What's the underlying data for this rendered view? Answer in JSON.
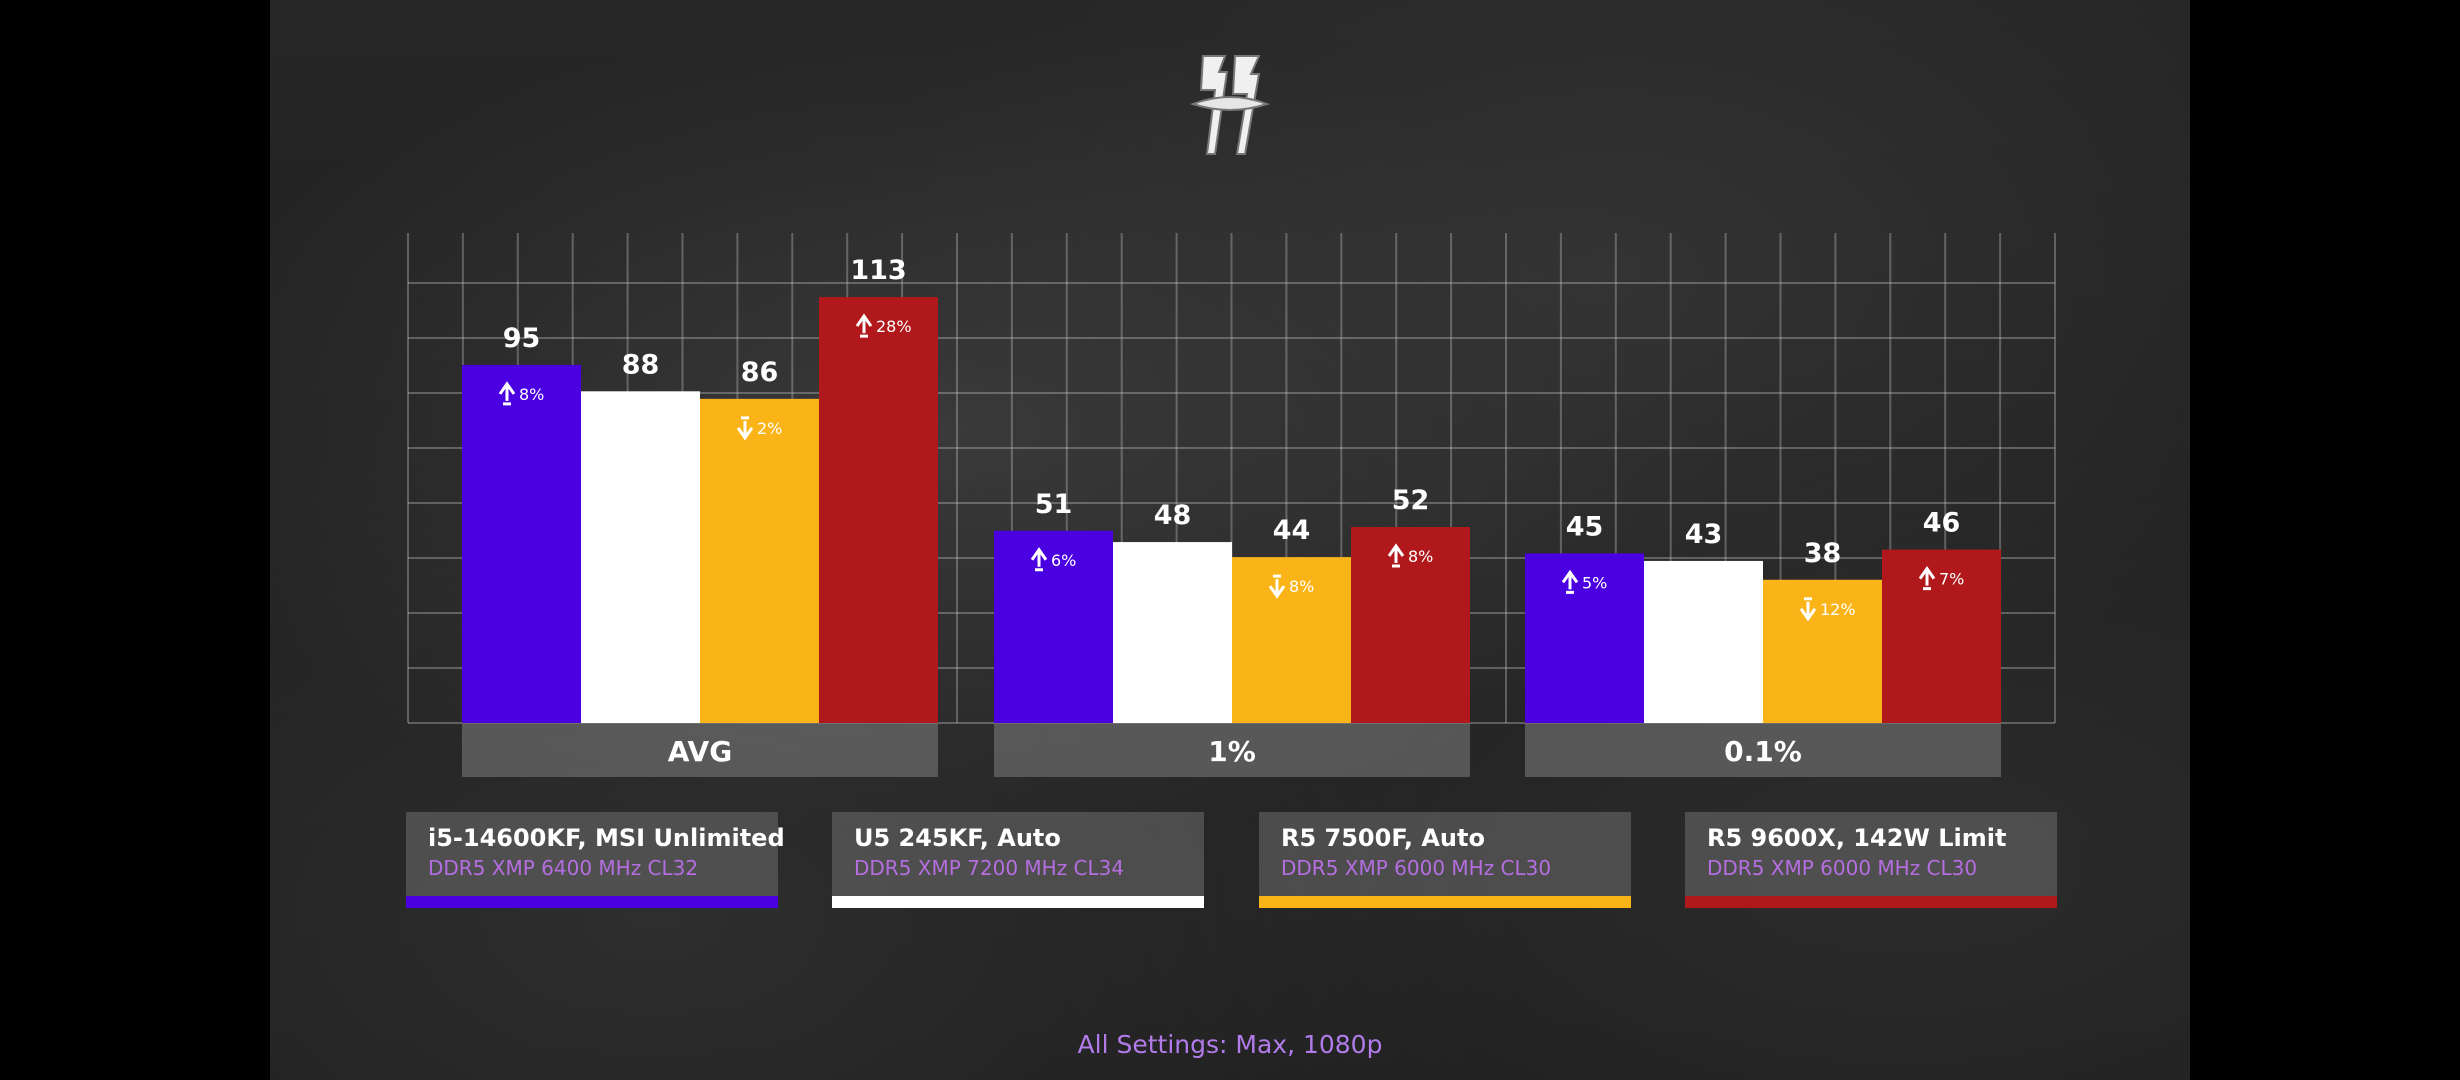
{
  "footnote": "All Settings: Max, 1080p",
  "legend": [
    {
      "name": "i5-14600KF, MSI Unlimited",
      "spec": "DDR5 XMP 6400 MHz CL32",
      "color": "#4a00e0"
    },
    {
      "name": "U5 245KF, Auto",
      "spec": "DDR5 XMP 7200 MHz CL34",
      "color": "#ffffff"
    },
    {
      "name": "R5 7500F, Auto",
      "spec": "DDR5 XMP 6000 MHz CL30",
      "color": "#fbb417"
    },
    {
      "name": "R5 9600X, 142W Limit",
      "spec": "DDR5 XMP 6000 MHz CL30",
      "color": "#b0181b"
    }
  ],
  "chart_data": {
    "type": "bar",
    "categories": [
      "AVG",
      "1%",
      "0.1%"
    ],
    "series": [
      {
        "name": "i5-14600KF, MSI Unlimited",
        "values": [
          95,
          51,
          45
        ],
        "deltas": [
          "8%",
          "6%",
          "5%"
        ],
        "direction": [
          "up",
          "up",
          "up"
        ]
      },
      {
        "name": "U5 245KF, Auto",
        "values": [
          88,
          48,
          43
        ],
        "deltas": [
          "",
          "",
          ""
        ],
        "direction": [
          "",
          "",
          ""
        ]
      },
      {
        "name": "R5 7500F, Auto",
        "values": [
          86,
          44,
          38
        ],
        "deltas": [
          "2%",
          "8%",
          "12%"
        ],
        "direction": [
          "down",
          "down",
          "down"
        ]
      },
      {
        "name": "R5 9600X, 142W Limit",
        "values": [
          113,
          52,
          46
        ],
        "deltas": [
          "28%",
          "8%",
          "7%"
        ],
        "direction": [
          "up",
          "up",
          "up"
        ]
      }
    ],
    "ylim": [
      0,
      130
    ],
    "grid": true
  }
}
